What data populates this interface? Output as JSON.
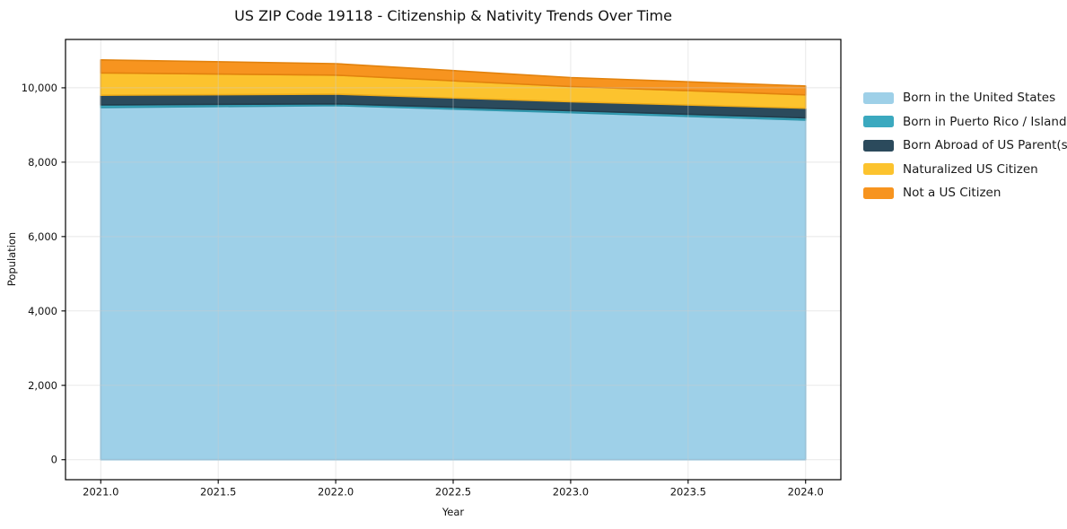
{
  "chart_data": {
    "type": "area",
    "title": "US ZIP Code 19118 - Citizenship & Nativity Trends Over Time",
    "xlabel": "Year",
    "ylabel": "Population",
    "x": [
      2021,
      2022,
      2023,
      2024
    ],
    "series": [
      {
        "name": "Born in the United States",
        "color": "#9ED0E8",
        "edge_color": "#85BEDB",
        "values": [
          9470,
          9520,
          9330,
          9130
        ]
      },
      {
        "name": "Born in Puerto Rico / Islands",
        "color": "#3BA9BF",
        "edge_color": "#2F95AA",
        "values": [
          70,
          50,
          55,
          60
        ]
      },
      {
        "name": "Born Abroad of US Parent(s)",
        "color": "#2B4A5C",
        "edge_color": "#223C4B",
        "values": [
          260,
          260,
          240,
          260
        ]
      },
      {
        "name": "Naturalized US Citizen",
        "color": "#FCC32E",
        "edge_color": "#EFAC18",
        "values": [
          600,
          510,
          410,
          360
        ]
      },
      {
        "name": "Not a US Citizen",
        "color": "#F7941F",
        "edge_color": "#E2820D",
        "values": [
          350,
          310,
          240,
          240
        ]
      }
    ],
    "xticks": {
      "values": [
        2021,
        2021.5,
        2022,
        2022.5,
        2023,
        2023.5,
        2024
      ],
      "labels": [
        "2021.0",
        "2021.5",
        "2022.0",
        "2022.5",
        "2023.0",
        "2023.5",
        "2024.0"
      ]
    },
    "yticks": {
      "values": [
        0,
        2000,
        4000,
        6000,
        8000,
        10000
      ],
      "labels": [
        "0",
        "2,000",
        "4,000",
        "6,000",
        "8,000",
        "10,000"
      ]
    },
    "xlim": [
      2020.85,
      2024.15
    ],
    "ylim": [
      -537,
      11300
    ],
    "grid": true,
    "grid_color": "#cccccc",
    "frame_color": "#000000",
    "legend_position": "right"
  }
}
